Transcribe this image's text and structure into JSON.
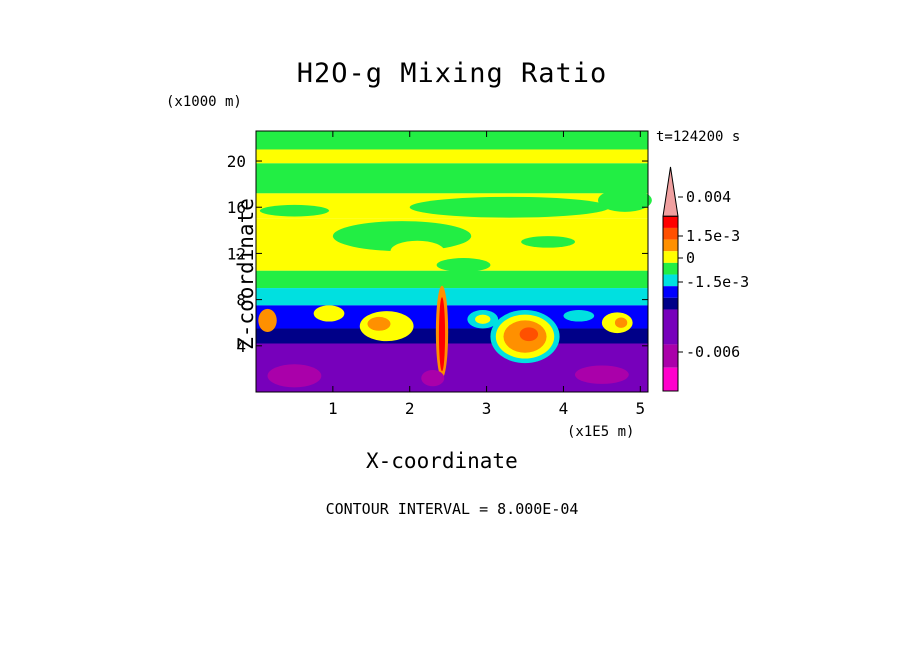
{
  "chart_data": {
    "type": "heatmap",
    "title": "H2O-g Mixing Ratio",
    "xlabel": "X-coordinate",
    "ylabel": "Z-coordinate",
    "x_unit": "(x1E5 m)",
    "y_unit": "(x1000 m)",
    "time_label": "t=124200 s",
    "footer": "CONTOUR INTERVAL = 8.000E-04",
    "xlim": [
      0,
      5.1
    ],
    "ylim": [
      0,
      22.6
    ],
    "x_ticks": [
      "1",
      "2",
      "3",
      "4",
      "5"
    ],
    "x_tick_values": [
      1,
      2,
      3,
      4,
      5
    ],
    "y_ticks": [
      "4",
      "8",
      "12",
      "16",
      "20"
    ],
    "y_tick_values": [
      4,
      8,
      12,
      16,
      20
    ],
    "colorbar": {
      "labels": [
        "0.004",
        "1.5e-3",
        "0",
        "-1.5e-3",
        "-0.006"
      ],
      "label_values": [
        0.004,
        0.0015,
        0,
        -0.0015,
        -0.006
      ],
      "levels": [
        {
          "upper": 0.0048,
          "color": "#f0a0a0"
        },
        {
          "upper": 0.0032,
          "color": "#ff0000"
        },
        {
          "upper": 0.0024,
          "color": "#ff5000"
        },
        {
          "upper": 0.0016,
          "color": "#ff9000"
        },
        {
          "upper": 0.0008,
          "color": "#ffff00"
        },
        {
          "upper": 0.0,
          "color": "#22ee44"
        },
        {
          "upper": -0.0008,
          "color": "#00e0e0"
        },
        {
          "upper": -0.0016,
          "color": "#0000ff"
        },
        {
          "upper": -0.0024,
          "color": "#000088"
        },
        {
          "upper": -0.0032,
          "color": "#7700bb"
        },
        {
          "upper": -0.0056,
          "color": "#aa00aa"
        },
        {
          "upper": -0.0072,
          "color": "#ff00cc"
        }
      ]
    },
    "field_bands": [
      {
        "z_range": [
          21.0,
          22.6
        ],
        "color": "#22ee44"
      },
      {
        "z_range": [
          19.8,
          21.0
        ],
        "color": "#ffff00"
      },
      {
        "z_range": [
          17.2,
          19.8
        ],
        "color": "#22ee44"
      },
      {
        "z_range": [
          15.0,
          17.2
        ],
        "color": "#ffff00"
      },
      {
        "z_range": [
          10.5,
          15.0
        ],
        "color": "#ffff00"
      },
      {
        "z_range": [
          9.0,
          10.5
        ],
        "color": "#22ee44"
      },
      {
        "z_range": [
          7.5,
          9.0
        ],
        "color": "#00e0e0"
      },
      {
        "z_range": [
          5.5,
          7.5
        ],
        "color": "#0000ff"
      },
      {
        "z_range": [
          4.2,
          5.5
        ],
        "color": "#000088"
      },
      {
        "z_range": [
          0.0,
          4.2
        ],
        "color": "#7700bb"
      }
    ]
  }
}
